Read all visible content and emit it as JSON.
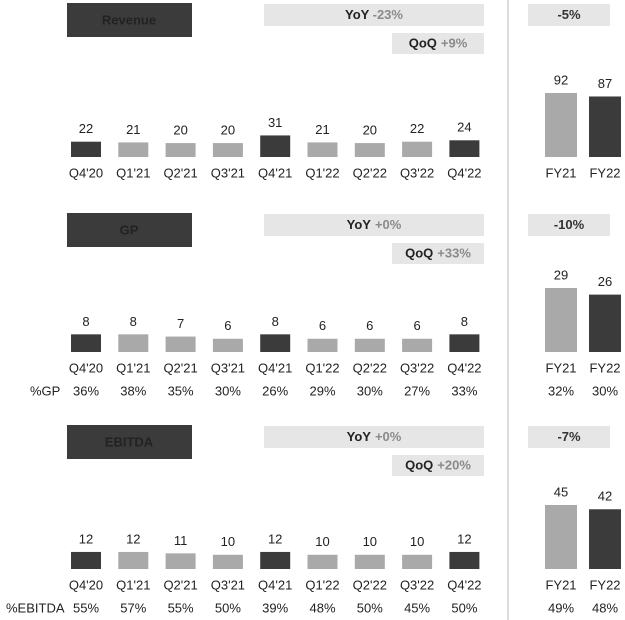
{
  "chart_data": [
    {
      "type": "bar",
      "title": "Revenue",
      "categories": [
        "Q4'20",
        "Q1'21",
        "Q2'21",
        "Q3'21",
        "Q4'21",
        "Q1'22",
        "Q2'22",
        "Q3'22",
        "Q4'22"
      ],
      "values": [
        22,
        21,
        20,
        20,
        31,
        21,
        20,
        22,
        24
      ],
      "colors": [
        "#3b3b3b",
        "#a9a9a9",
        "#a9a9a9",
        "#a9a9a9",
        "#3b3b3b",
        "#a9a9a9",
        "#a9a9a9",
        "#a9a9a9",
        "#3b3b3b"
      ],
      "yoy": {
        "label": "YoY",
        "value": "-23%"
      },
      "qoq": {
        "label": "QoQ",
        "value": "+9%"
      }
    },
    {
      "type": "bar",
      "categories": [
        "FY21",
        "FY22"
      ],
      "values": [
        92,
        87
      ],
      "colors": [
        "#a9a9a9",
        "#3b3b3b"
      ],
      "change": "-5%"
    },
    {
      "type": "bar",
      "title": "GP",
      "categories": [
        "Q4'20",
        "Q1'21",
        "Q2'21",
        "Q3'21",
        "Q4'21",
        "Q1'22",
        "Q2'22",
        "Q3'22",
        "Q4'22"
      ],
      "values": [
        8,
        8,
        7,
        6,
        8,
        6,
        6,
        6,
        8
      ],
      "colors": [
        "#3b3b3b",
        "#a9a9a9",
        "#a9a9a9",
        "#a9a9a9",
        "#3b3b3b",
        "#a9a9a9",
        "#a9a9a9",
        "#a9a9a9",
        "#3b3b3b"
      ],
      "yoy": {
        "label": "YoY",
        "value": "+0%"
      },
      "qoq": {
        "label": "QoQ",
        "value": "+33%"
      },
      "margin_label": "%GP",
      "margins": [
        "36%",
        "38%",
        "35%",
        "30%",
        "26%",
        "29%",
        "30%",
        "27%",
        "33%"
      ]
    },
    {
      "type": "bar",
      "categories": [
        "FY21",
        "FY22"
      ],
      "values": [
        29,
        26
      ],
      "colors": [
        "#a9a9a9",
        "#3b3b3b"
      ],
      "change": "-10%",
      "margins": [
        "32%",
        "30%"
      ]
    },
    {
      "type": "bar",
      "title": "EBITDA",
      "categories": [
        "Q4'20",
        "Q1'21",
        "Q2'21",
        "Q3'21",
        "Q4'21",
        "Q1'22",
        "Q2'22",
        "Q3'22",
        "Q4'22"
      ],
      "values": [
        12,
        12,
        11,
        10,
        12,
        10,
        10,
        10,
        12
      ],
      "colors": [
        "#3b3b3b",
        "#a9a9a9",
        "#a9a9a9",
        "#a9a9a9",
        "#3b3b3b",
        "#a9a9a9",
        "#a9a9a9",
        "#a9a9a9",
        "#3b3b3b"
      ],
      "yoy": {
        "label": "YoY",
        "value": "+0%"
      },
      "qoq": {
        "label": "QoQ",
        "value": "+20%"
      },
      "margin_label": "%EBITDA",
      "margins": [
        "55%",
        "57%",
        "55%",
        "50%",
        "39%",
        "48%",
        "50%",
        "45%",
        "50%"
      ]
    },
    {
      "type": "bar",
      "categories": [
        "FY21",
        "FY22"
      ],
      "values": [
        45,
        42
      ],
      "colors": [
        "#a9a9a9",
        "#3b3b3b"
      ],
      "change": "-7%",
      "margins": [
        "49%",
        "48%"
      ]
    }
  ]
}
